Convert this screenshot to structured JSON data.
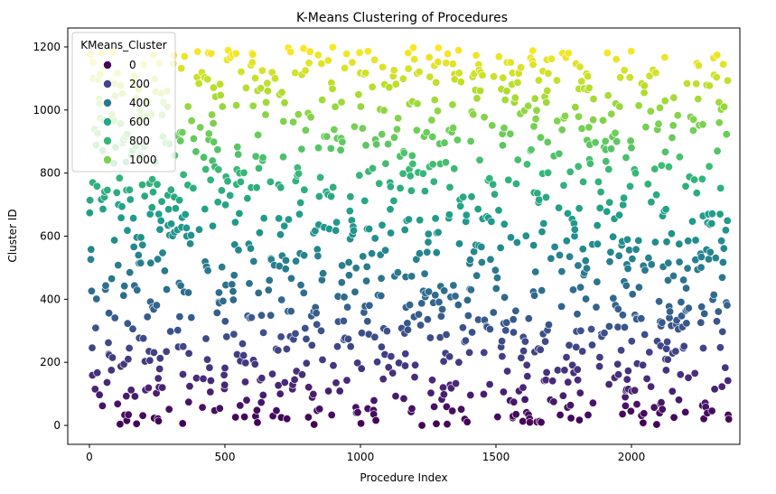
{
  "chart_data": {
    "type": "scatter",
    "title": "K-Means Clustering of Procedures",
    "xlabel": "Procedure Index",
    "ylabel": "Cluster ID",
    "xlim": [
      -80,
      2400
    ],
    "ylim": [
      -60,
      1260
    ],
    "xticks": [
      0,
      500,
      1000,
      1500,
      2000
    ],
    "yticks": [
      0,
      200,
      400,
      600,
      800,
      1000,
      1200
    ],
    "x_tick_labels": [
      "0",
      "500",
      "1000",
      "1500",
      "2000"
    ],
    "y_tick_labels": [
      "0",
      "200",
      "400",
      "600",
      "800",
      "1000",
      "1200"
    ],
    "grid": false,
    "n_points": 2360,
    "hue_variable": "KMeans_Cluster",
    "hue_range": [
      0,
      1199
    ],
    "colormap": "viridis",
    "legend": {
      "title": "KMeans_Cluster",
      "placement": "top-left",
      "entries": [
        {
          "label": "0",
          "value": 0,
          "color": "#440154"
        },
        {
          "label": "200",
          "value": 200,
          "color": "#414487"
        },
        {
          "label": "400",
          "value": 400,
          "color": "#2a788e"
        },
        {
          "label": "600",
          "value": 600,
          "color": "#22a884"
        },
        {
          "label": "800",
          "value": 800,
          "color": "#35b779"
        },
        {
          "label": "1000",
          "value": 1000,
          "color": "#7ad151"
        }
      ]
    }
  },
  "colors": {
    "marker_edge": "#ffffff",
    "axis": "#000000",
    "legend_border": "#cccccc",
    "viridis_stops": [
      "#440154",
      "#482878",
      "#3e4a89",
      "#31688e",
      "#26828e",
      "#1f9e89",
      "#35b779",
      "#6ece58",
      "#b5de2b",
      "#fde725"
    ]
  }
}
